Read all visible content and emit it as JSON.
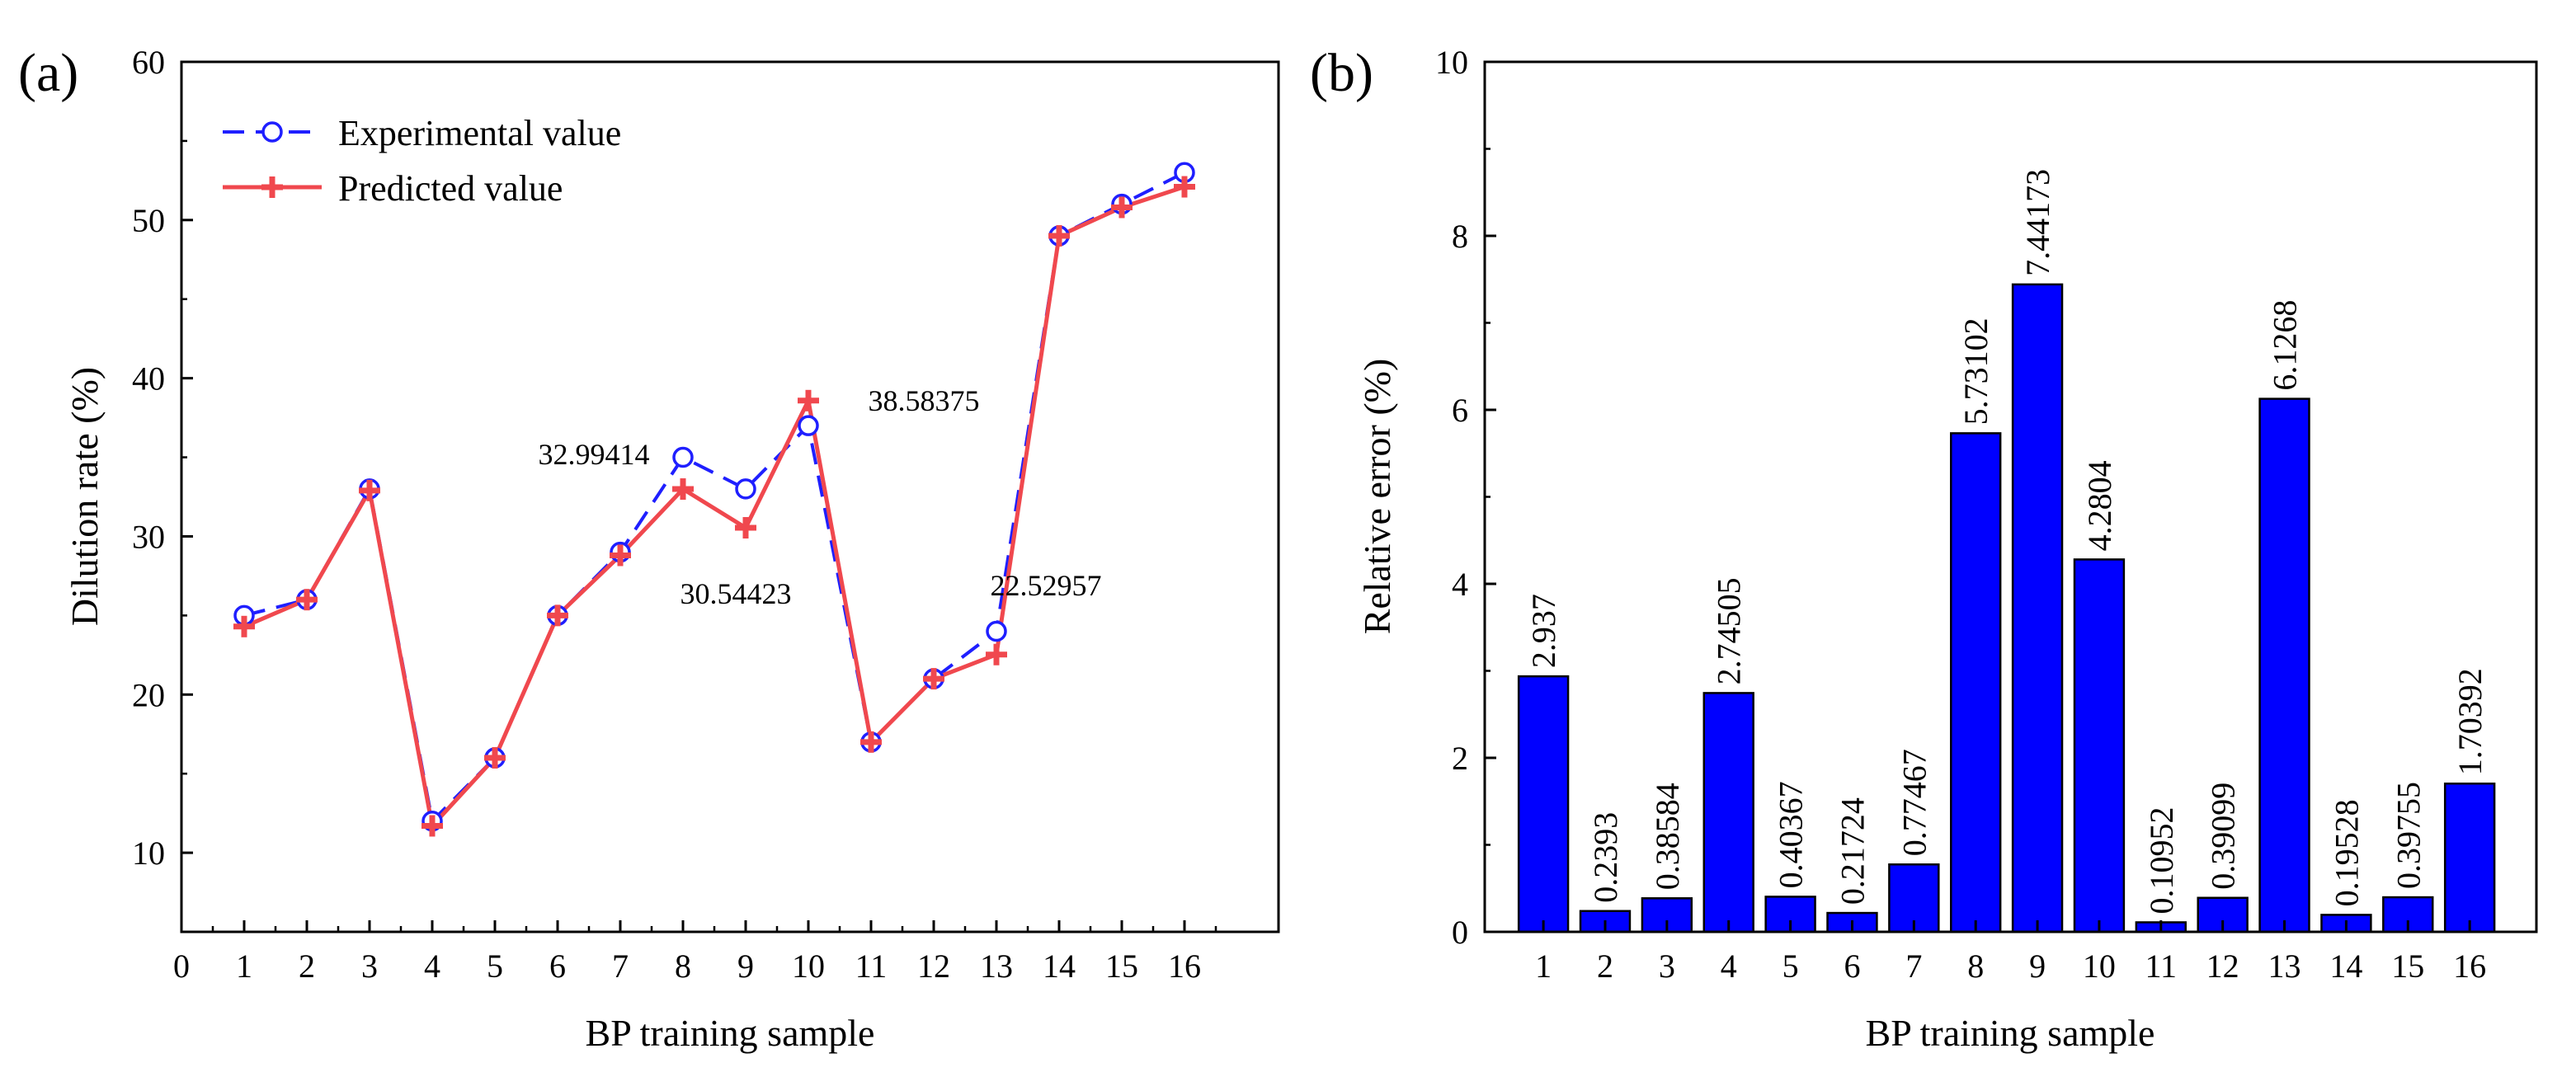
{
  "chart_data": [
    {
      "panel_label": "(a)",
      "type": "line",
      "xlabel": "BP training sample",
      "ylabel": "Dilution rate (%)",
      "xlim": [
        0,
        16
      ],
      "ylim": [
        5,
        60
      ],
      "x_ticks": [
        "0",
        "1",
        "2",
        "3",
        "4",
        "5",
        "6",
        "7",
        "8",
        "9",
        "10",
        "11",
        "12",
        "13",
        "14",
        "15",
        "16"
      ],
      "y_ticks": [
        "10",
        "20",
        "30",
        "40",
        "50",
        "60"
      ],
      "legend_position": "top-left",
      "x": [
        1,
        2,
        3,
        4,
        5,
        6,
        7,
        8,
        9,
        10,
        11,
        12,
        13,
        14,
        15,
        16
      ],
      "series": [
        {
          "name": "Experimental value",
          "color": "#1f1fff",
          "marker": "circle",
          "line_style": "dashed",
          "values": [
            25,
            26,
            33,
            12,
            16,
            25,
            29,
            35,
            33,
            37,
            17,
            21,
            24,
            49,
            51,
            53
          ]
        },
        {
          "name": "Predicted value",
          "color": "#f0484e",
          "marker": "plus",
          "line_style": "solid",
          "values": [
            24.3,
            26,
            32.9,
            11.7,
            16,
            25,
            28.8,
            32.99414,
            30.54423,
            38.58375,
            17,
            21,
            22.52957,
            49,
            50.8,
            52.1
          ]
        }
      ],
      "annotations": [
        {
          "text": "32.99414",
          "x": 8,
          "y": 32.99414
        },
        {
          "text": "30.54423",
          "x": 9,
          "y": 30.54423
        },
        {
          "text": "38.58375",
          "x": 10,
          "y": 38.58375
        },
        {
          "text": "22.52957",
          "x": 13,
          "y": 22.52957
        }
      ]
    },
    {
      "panel_label": "(b)",
      "type": "bar",
      "xlabel": "BP training sample",
      "ylabel": "Relative error (%)",
      "ylim": [
        0,
        10
      ],
      "y_ticks": [
        "0",
        "2",
        "4",
        "6",
        "8",
        "10"
      ],
      "categories": [
        "1",
        "2",
        "3",
        "4",
        "5",
        "6",
        "7",
        "8",
        "9",
        "10",
        "11",
        "12",
        "13",
        "14",
        "15",
        "16"
      ],
      "bar_color": "#0000ff",
      "values": [
        2.937,
        0.2393,
        0.38584,
        2.74505,
        0.40367,
        0.21724,
        0.77467,
        5.73102,
        7.44173,
        4.2804,
        0.10952,
        0.39099,
        6.1268,
        0.19528,
        0.39755,
        1.70392
      ],
      "data_labels": [
        "2.937",
        "0.2393",
        "0.38584",
        "2.74505",
        "0.40367",
        "0.21724",
        "0.77467",
        "5.73102",
        "7.44173",
        "4.2804",
        "0.10952",
        "0.39099",
        "6.1268",
        "0.19528",
        "0.39755",
        "1.70392"
      ]
    }
  ]
}
